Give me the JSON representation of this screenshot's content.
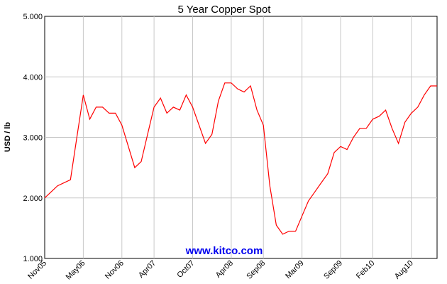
{
  "chart_data": {
    "type": "line",
    "title": "5 Year Copper Spot",
    "ylabel": "USD / lb",
    "xlabel": "",
    "ylim": [
      1.0,
      5.0
    ],
    "yticks": [
      "1.000",
      "2.000",
      "3.000",
      "4.000",
      "5.000"
    ],
    "yticks_values": [
      1.0,
      2.0,
      3.0,
      4.0,
      5.0
    ],
    "xticks": [
      "Nov05",
      "May06",
      "Nov06",
      "Apr07",
      "Oct07",
      "Apr08",
      "Sep08",
      "Mar09",
      "Sep09",
      "Feb10",
      "Aug10"
    ],
    "xlim": [
      "Nov05",
      "Dec10"
    ],
    "grid": true,
    "legend": "none",
    "series": [
      {
        "color": "#ff0000",
        "x": [
          "Nov05",
          "Dec05",
          "Jan06",
          "Feb06",
          "Mar06",
          "Apr06",
          "May06",
          "Jun06",
          "Jul06",
          "Aug06",
          "Sep06",
          "Oct06",
          "Nov06",
          "Dec06",
          "Jan07",
          "Feb07",
          "Mar07",
          "Apr07",
          "May07",
          "Jun07",
          "Jul07",
          "Aug07",
          "Sep07",
          "Oct07",
          "Nov07",
          "Dec07",
          "Jan08",
          "Feb08",
          "Mar08",
          "Apr08",
          "May08",
          "Jun08",
          "Jul08",
          "Aug08",
          "Sep08",
          "Oct08",
          "Nov08",
          "Dec08",
          "Jan09",
          "Feb09",
          "Mar09",
          "Apr09",
          "May09",
          "Jun09",
          "Jul09",
          "Aug09",
          "Sep09",
          "Oct09",
          "Nov09",
          "Dec09",
          "Jan10",
          "Feb10",
          "Mar10",
          "Apr10",
          "May10",
          "Jun10",
          "Jul10",
          "Aug10",
          "Sep10",
          "Oct10",
          "Nov10",
          "Dec10"
        ],
        "values": [
          2.0,
          2.1,
          2.2,
          2.25,
          2.3,
          3.0,
          3.7,
          3.3,
          3.5,
          3.5,
          3.4,
          3.4,
          3.2,
          2.85,
          2.5,
          2.6,
          3.05,
          3.5,
          3.65,
          3.4,
          3.5,
          3.45,
          3.7,
          3.5,
          3.2,
          2.9,
          3.05,
          3.6,
          3.9,
          3.9,
          3.8,
          3.75,
          3.85,
          3.45,
          3.2,
          2.2,
          1.55,
          1.4,
          1.45,
          1.45,
          1.7,
          1.95,
          2.1,
          2.25,
          2.4,
          2.75,
          2.85,
          2.8,
          3.0,
          3.15,
          3.15,
          3.3,
          3.35,
          3.45,
          3.15,
          2.9,
          3.25,
          3.4,
          3.5,
          3.7,
          3.85,
          3.85
        ]
      }
    ],
    "watermark": "www.kitco.com"
  }
}
